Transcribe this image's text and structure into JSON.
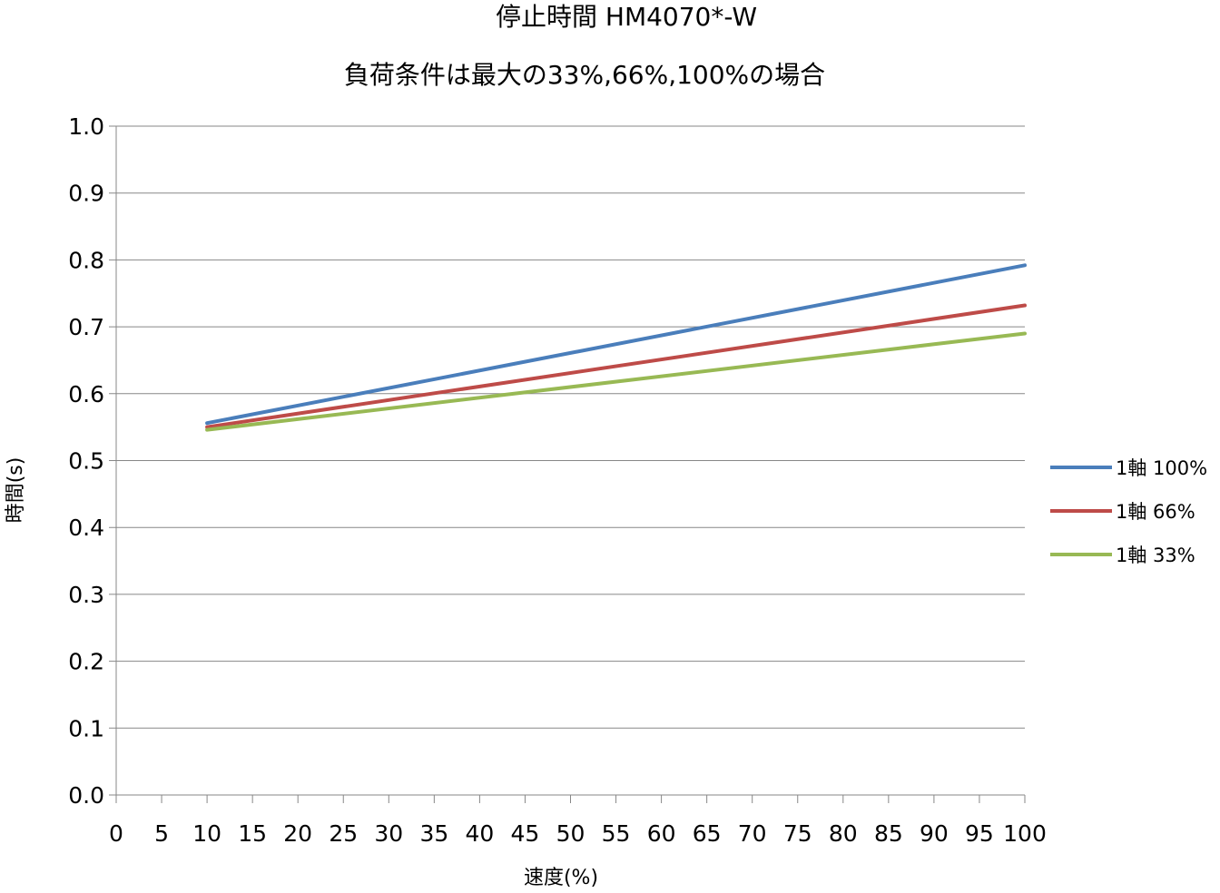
{
  "chart_data": {
    "type": "line",
    "title": "停止時間 HM4070*-W",
    "subtitle": "負荷条件は最大の33%,66%,100%の場合",
    "xlabel": "速度(%)",
    "ylabel": "時間(s)",
    "xlim": [
      0,
      100
    ],
    "ylim": [
      0,
      1.0
    ],
    "x_ticks": [
      "0",
      "5",
      "10",
      "15",
      "20",
      "25",
      "30",
      "35",
      "40",
      "45",
      "50",
      "55",
      "60",
      "65",
      "70",
      "75",
      "80",
      "85",
      "90",
      "95",
      "100"
    ],
    "y_ticks": [
      "0.0",
      "0.1",
      "0.2",
      "0.3",
      "0.4",
      "0.5",
      "0.6",
      "0.7",
      "0.8",
      "0.9",
      "1.0"
    ],
    "grid": "horizontal",
    "legend_position": "right",
    "x": [
      10,
      100
    ],
    "series": [
      {
        "name": "1軸 100%",
        "color": "#4a7ebb",
        "values": [
          0.556,
          0.792
        ]
      },
      {
        "name": "1軸 66%",
        "color": "#be4b48",
        "values": [
          0.55,
          0.732
        ]
      },
      {
        "name": "1軸 33%",
        "color": "#98b954",
        "values": [
          0.546,
          0.69
        ]
      }
    ]
  }
}
